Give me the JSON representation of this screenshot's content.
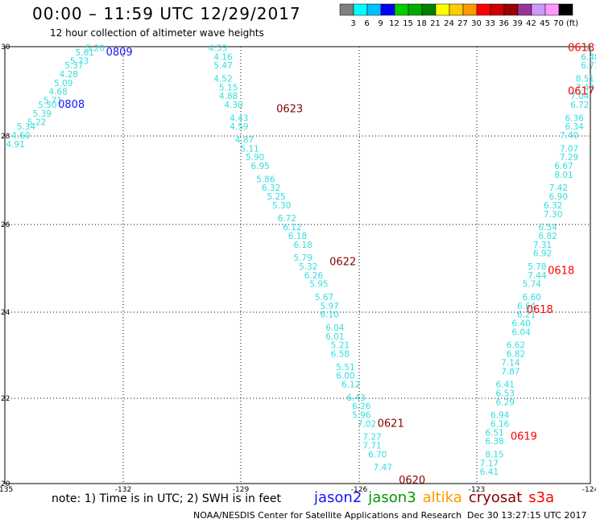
{
  "header": {
    "title": "00:00 – 11:59 UTC 12/29/2017",
    "subtitle": "12 hour collection of altimeter wave heights"
  },
  "colorbar": {
    "labels": [
      "3",
      "6",
      "9",
      "12",
      "15",
      "18",
      "21",
      "24",
      "27",
      "30",
      "33",
      "36",
      "39",
      "42",
      "45",
      "70",
      "(ft)"
    ],
    "colors": [
      "#7f7f7f",
      "#00ffff",
      "#00bfff",
      "#0000ff",
      "#00cc00",
      "#00aa00",
      "#008000",
      "#ffff00",
      "#ffcc00",
      "#ff9900",
      "#ff0000",
      "#cc0000",
      "#990000",
      "#993399",
      "#cc99ff",
      "#ff99ff",
      "#000000"
    ]
  },
  "map_data": {
    "lon_range": [
      -135,
      -124
    ],
    "lat_range": [
      20,
      30
    ],
    "x_ticks": [
      "-135",
      "-132",
      "-129",
      "-126",
      "-123",
      "-124"
    ],
    "y_ticks": [
      "30",
      "28",
      "26",
      "24",
      "22",
      "20"
    ],
    "tracks": [
      {
        "sat": "jason2",
        "color": "#1515ff",
        "val_color": "#33dddd",
        "labels": [
          {
            "text": "0809",
            "lat": 29.8,
            "lon": -133.1
          },
          {
            "text": "0808",
            "lat": 28.6,
            "lon": -134.0
          }
        ],
        "points": [
          {
            "v": "5.20",
            "lat": 29.9,
            "lon": -133.3
          },
          {
            "v": "5.61",
            "lat": 29.8,
            "lon": -133.5
          },
          {
            "v": "5.73",
            "lat": 29.6,
            "lon": -133.6
          },
          {
            "v": "5.37",
            "lat": 29.5,
            "lon": -133.7
          },
          {
            "v": "4.28",
            "lat": 29.3,
            "lon": -133.8
          },
          {
            "v": "5.09",
            "lat": 29.1,
            "lon": -133.9
          },
          {
            "v": "4.68",
            "lat": 28.9,
            "lon": -134.0
          },
          {
            "v": "5.71",
            "lat": 28.7,
            "lon": -134.1
          },
          {
            "v": "5.50",
            "lat": 28.6,
            "lon": -134.2
          },
          {
            "v": "5.39",
            "lat": 28.4,
            "lon": -134.3
          },
          {
            "v": "5.22",
            "lat": 28.2,
            "lon": -134.4
          },
          {
            "v": "5.34",
            "lat": 28.1,
            "lon": -134.6
          },
          {
            "v": "4.60",
            "lat": 27.9,
            "lon": -134.7
          },
          {
            "v": "4.91",
            "lat": 27.7,
            "lon": -134.8
          }
        ]
      },
      {
        "sat": "cryosat",
        "color": "#880000",
        "val_color": "#33dddd",
        "labels": [
          {
            "text": "0623",
            "lat": 28.5,
            "lon": -129.9
          },
          {
            "text": "0622",
            "lat": 25.0,
            "lon": -128.9
          },
          {
            "text": "0621",
            "lat": 21.3,
            "lon": -128.0
          },
          {
            "text": "0620",
            "lat": 20.0,
            "lon": -127.6
          }
        ],
        "points": [
          {
            "v": "4.53",
            "lat": 29.9,
            "lon": -131.0
          },
          {
            "v": "4.16",
            "lat": 29.7,
            "lon": -130.9
          },
          {
            "v": "5.47",
            "lat": 29.5,
            "lon": -130.9
          },
          {
            "v": "4.52",
            "lat": 29.2,
            "lon": -130.9
          },
          {
            "v": "5.15",
            "lat": 29.0,
            "lon": -130.8
          },
          {
            "v": "4.88",
            "lat": 28.8,
            "lon": -130.8
          },
          {
            "v": "4.30",
            "lat": 28.6,
            "lon": -130.7
          },
          {
            "v": "4.43",
            "lat": 28.3,
            "lon": -130.6
          },
          {
            "v": "4.59",
            "lat": 28.1,
            "lon": -130.6
          },
          {
            "v": "4.87",
            "lat": 27.8,
            "lon": -130.5
          },
          {
            "v": "5.11",
            "lat": 27.6,
            "lon": -130.4
          },
          {
            "v": "5.90",
            "lat": 27.4,
            "lon": -130.3
          },
          {
            "v": "6.95",
            "lat": 27.2,
            "lon": -130.2
          },
          {
            "v": "5.86",
            "lat": 26.9,
            "lon": -130.1
          },
          {
            "v": "6.32",
            "lat": 26.7,
            "lon": -130.0
          },
          {
            "v": "5.25",
            "lat": 26.5,
            "lon": -129.9
          },
          {
            "v": "5.30",
            "lat": 26.3,
            "lon": -129.8
          },
          {
            "v": "6.72",
            "lat": 26.0,
            "lon": -129.7
          },
          {
            "v": "6.12",
            "lat": 25.8,
            "lon": -129.6
          },
          {
            "v": "6.18",
            "lat": 25.6,
            "lon": -129.5
          },
          {
            "v": "6.18",
            "lat": 25.4,
            "lon": -129.4
          },
          {
            "v": "5.79",
            "lat": 25.1,
            "lon": -129.4
          },
          {
            "v": "5.32",
            "lat": 24.9,
            "lon": -129.3
          },
          {
            "v": "6.26",
            "lat": 24.7,
            "lon": -129.2
          },
          {
            "v": "5.95",
            "lat": 24.5,
            "lon": -129.1
          },
          {
            "v": "5.67",
            "lat": 24.2,
            "lon": -129.0
          },
          {
            "v": "5.97",
            "lat": 24.0,
            "lon": -128.9
          },
          {
            "v": "6.10",
            "lat": 23.8,
            "lon": -128.9
          },
          {
            "v": "6.04",
            "lat": 23.5,
            "lon": -128.8
          },
          {
            "v": "6.01",
            "lat": 23.3,
            "lon": -128.8
          },
          {
            "v": "5.21",
            "lat": 23.1,
            "lon": -128.7
          },
          {
            "v": "6.58",
            "lat": 22.9,
            "lon": -128.7
          },
          {
            "v": "5.51",
            "lat": 22.6,
            "lon": -128.6
          },
          {
            "v": "6.00",
            "lat": 22.4,
            "lon": -128.6
          },
          {
            "v": "6.12",
            "lat": 22.2,
            "lon": -128.5
          },
          {
            "v": "6.43",
            "lat": 21.9,
            "lon": -128.4
          },
          {
            "v": "6.26",
            "lat": 21.7,
            "lon": -128.3
          },
          {
            "v": "5.96",
            "lat": 21.5,
            "lon": -128.3
          },
          {
            "v": "7.02",
            "lat": 21.3,
            "lon": -128.2
          },
          {
            "v": "7.27",
            "lat": 21.0,
            "lon": -128.1
          },
          {
            "v": "7.71",
            "lat": 20.8,
            "lon": -128.1
          },
          {
            "v": "6.70",
            "lat": 20.6,
            "lon": -128.0
          },
          {
            "v": "7.47",
            "lat": 20.3,
            "lon": -127.9
          }
        ]
      },
      {
        "sat": "s3a",
        "color": "#ff0000",
        "val_color": "#33dddd",
        "labels": [
          {
            "text": "0618",
            "lat": 29.9,
            "lon": -124.1
          },
          {
            "text": "0617",
            "lat": 28.9,
            "lon": -124.4
          },
          {
            "text": "0618",
            "lat": 24.8,
            "lon": -124.8
          },
          {
            "text": "0618",
            "lat": 23.9,
            "lon": -125.2
          },
          {
            "text": "0619",
            "lat": 21.0,
            "lon": -125.5
          }
        ],
        "points": [
          {
            "v": "6.71",
            "lat": 29.9,
            "lon": -123.9
          },
          {
            "v": "6.48",
            "lat": 29.7,
            "lon": -124.0
          },
          {
            "v": "6.71",
            "lat": 29.5,
            "lon": -124.0
          },
          {
            "v": "8.51",
            "lat": 29.2,
            "lon": -124.1
          },
          {
            "v": "7.43",
            "lat": 29.0,
            "lon": -124.1
          },
          {
            "v": "7.04",
            "lat": 28.8,
            "lon": -124.2
          },
          {
            "v": "6.72",
            "lat": 28.6,
            "lon": -124.2
          },
          {
            "v": "6.36",
            "lat": 28.3,
            "lon": -124.3
          },
          {
            "v": "6.34",
            "lat": 28.1,
            "lon": -124.3
          },
          {
            "v": "7.40",
            "lat": 27.9,
            "lon": -124.4
          },
          {
            "v": "7.07",
            "lat": 27.6,
            "lon": -124.4
          },
          {
            "v": "7.29",
            "lat": 27.4,
            "lon": -124.4
          },
          {
            "v": "6.67",
            "lat": 27.2,
            "lon": -124.5
          },
          {
            "v": "8.01",
            "lat": 27.0,
            "lon": -124.5
          },
          {
            "v": "7.42",
            "lat": 26.7,
            "lon": -124.6
          },
          {
            "v": "6.90",
            "lat": 26.5,
            "lon": -124.6
          },
          {
            "v": "6.32",
            "lat": 26.3,
            "lon": -124.7
          },
          {
            "v": "7.30",
            "lat": 26.1,
            "lon": -124.7
          },
          {
            "v": "6.54",
            "lat": 25.8,
            "lon": -124.8
          },
          {
            "v": "6.82",
            "lat": 25.6,
            "lon": -124.8
          },
          {
            "v": "7.31",
            "lat": 25.4,
            "lon": -124.9
          },
          {
            "v": "6.92",
            "lat": 25.2,
            "lon": -124.9
          },
          {
            "v": "5.78",
            "lat": 24.9,
            "lon": -125.0
          },
          {
            "v": "7.44",
            "lat": 24.7,
            "lon": -125.0
          },
          {
            "v": "5.74",
            "lat": 24.5,
            "lon": -125.1
          },
          {
            "v": "6.60",
            "lat": 24.2,
            "lon": -125.1
          },
          {
            "v": "6.64",
            "lat": 24.0,
            "lon": -125.2
          },
          {
            "v": "6.21",
            "lat": 23.8,
            "lon": -125.2
          },
          {
            "v": "6.40",
            "lat": 23.6,
            "lon": -125.3
          },
          {
            "v": "6.04",
            "lat": 23.4,
            "lon": -125.3
          },
          {
            "v": "6.62",
            "lat": 23.1,
            "lon": -125.4
          },
          {
            "v": "6.82",
            "lat": 22.9,
            "lon": -125.4
          },
          {
            "v": "7.14",
            "lat": 22.7,
            "lon": -125.5
          },
          {
            "v": "7.87",
            "lat": 22.5,
            "lon": -125.5
          },
          {
            "v": "6.41",
            "lat": 22.2,
            "lon": -125.6
          },
          {
            "v": "6.53",
            "lat": 22.0,
            "lon": -125.6
          },
          {
            "v": "6.29",
            "lat": 21.8,
            "lon": -125.6
          },
          {
            "v": "6.94",
            "lat": 21.5,
            "lon": -125.7
          },
          {
            "v": "6.16",
            "lat": 21.3,
            "lon": -125.7
          },
          {
            "v": "6.51",
            "lat": 21.1,
            "lon": -125.8
          },
          {
            "v": "6.38",
            "lat": 20.9,
            "lon": -125.8
          },
          {
            "v": "8.15",
            "lat": 20.6,
            "lon": -125.8
          },
          {
            "v": "7.17",
            "lat": 20.4,
            "lon": -125.9
          },
          {
            "v": "6.41",
            "lat": 20.2,
            "lon": -125.9
          }
        ]
      }
    ]
  },
  "legend": {
    "items": [
      {
        "label": "jason2",
        "color": "#1515ff"
      },
      {
        "label": "jason3",
        "color": "#009900"
      },
      {
        "label": "altika",
        "color": "#ff9900"
      },
      {
        "label": "cryosat",
        "color": "#880000"
      },
      {
        "label": "s3a",
        "color": "#ff0000"
      }
    ]
  },
  "footer": {
    "note": "note: 1) Time is in UTC; 2) SWH is in feet",
    "credit": "NOAA/NESDIS Center for Satellite Applications and Research",
    "timestamp": "Dec 30 13:27:15 UTC 2017"
  }
}
